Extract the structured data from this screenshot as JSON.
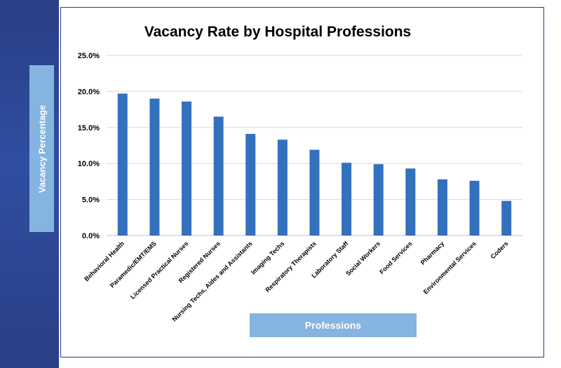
{
  "chart_data": {
    "type": "bar",
    "title": "Vacancy Rate by Hospital Professions",
    "ylabel": "Vacancy Percentage",
    "xlabel": "Professions",
    "ylim": [
      0,
      25
    ],
    "yticks": [
      0,
      5,
      10,
      15,
      20,
      25
    ],
    "ytick_labels": [
      "0.0%",
      "5.0%",
      "10.0%",
      "15.0%",
      "20.0%",
      "25.0%"
    ],
    "grid": true,
    "bar_color": "#3370be",
    "categories": [
      "Behavioral Health",
      "Paramedic/EMT/EMS",
      "Licensed Practical Nurses",
      "Registered Nurses",
      "Nursing Techs, Aides and Assistants",
      "Imaging Techs",
      "Respiratory Therapists",
      "Laboratory Staff",
      "Social Workers",
      "Food Services",
      "Pharmacy",
      "Environmental Services",
      "Coders"
    ],
    "values": [
      19.7,
      19.0,
      18.6,
      16.5,
      14.1,
      13.3,
      11.9,
      10.1,
      9.9,
      9.3,
      7.8,
      7.6,
      4.8
    ]
  }
}
